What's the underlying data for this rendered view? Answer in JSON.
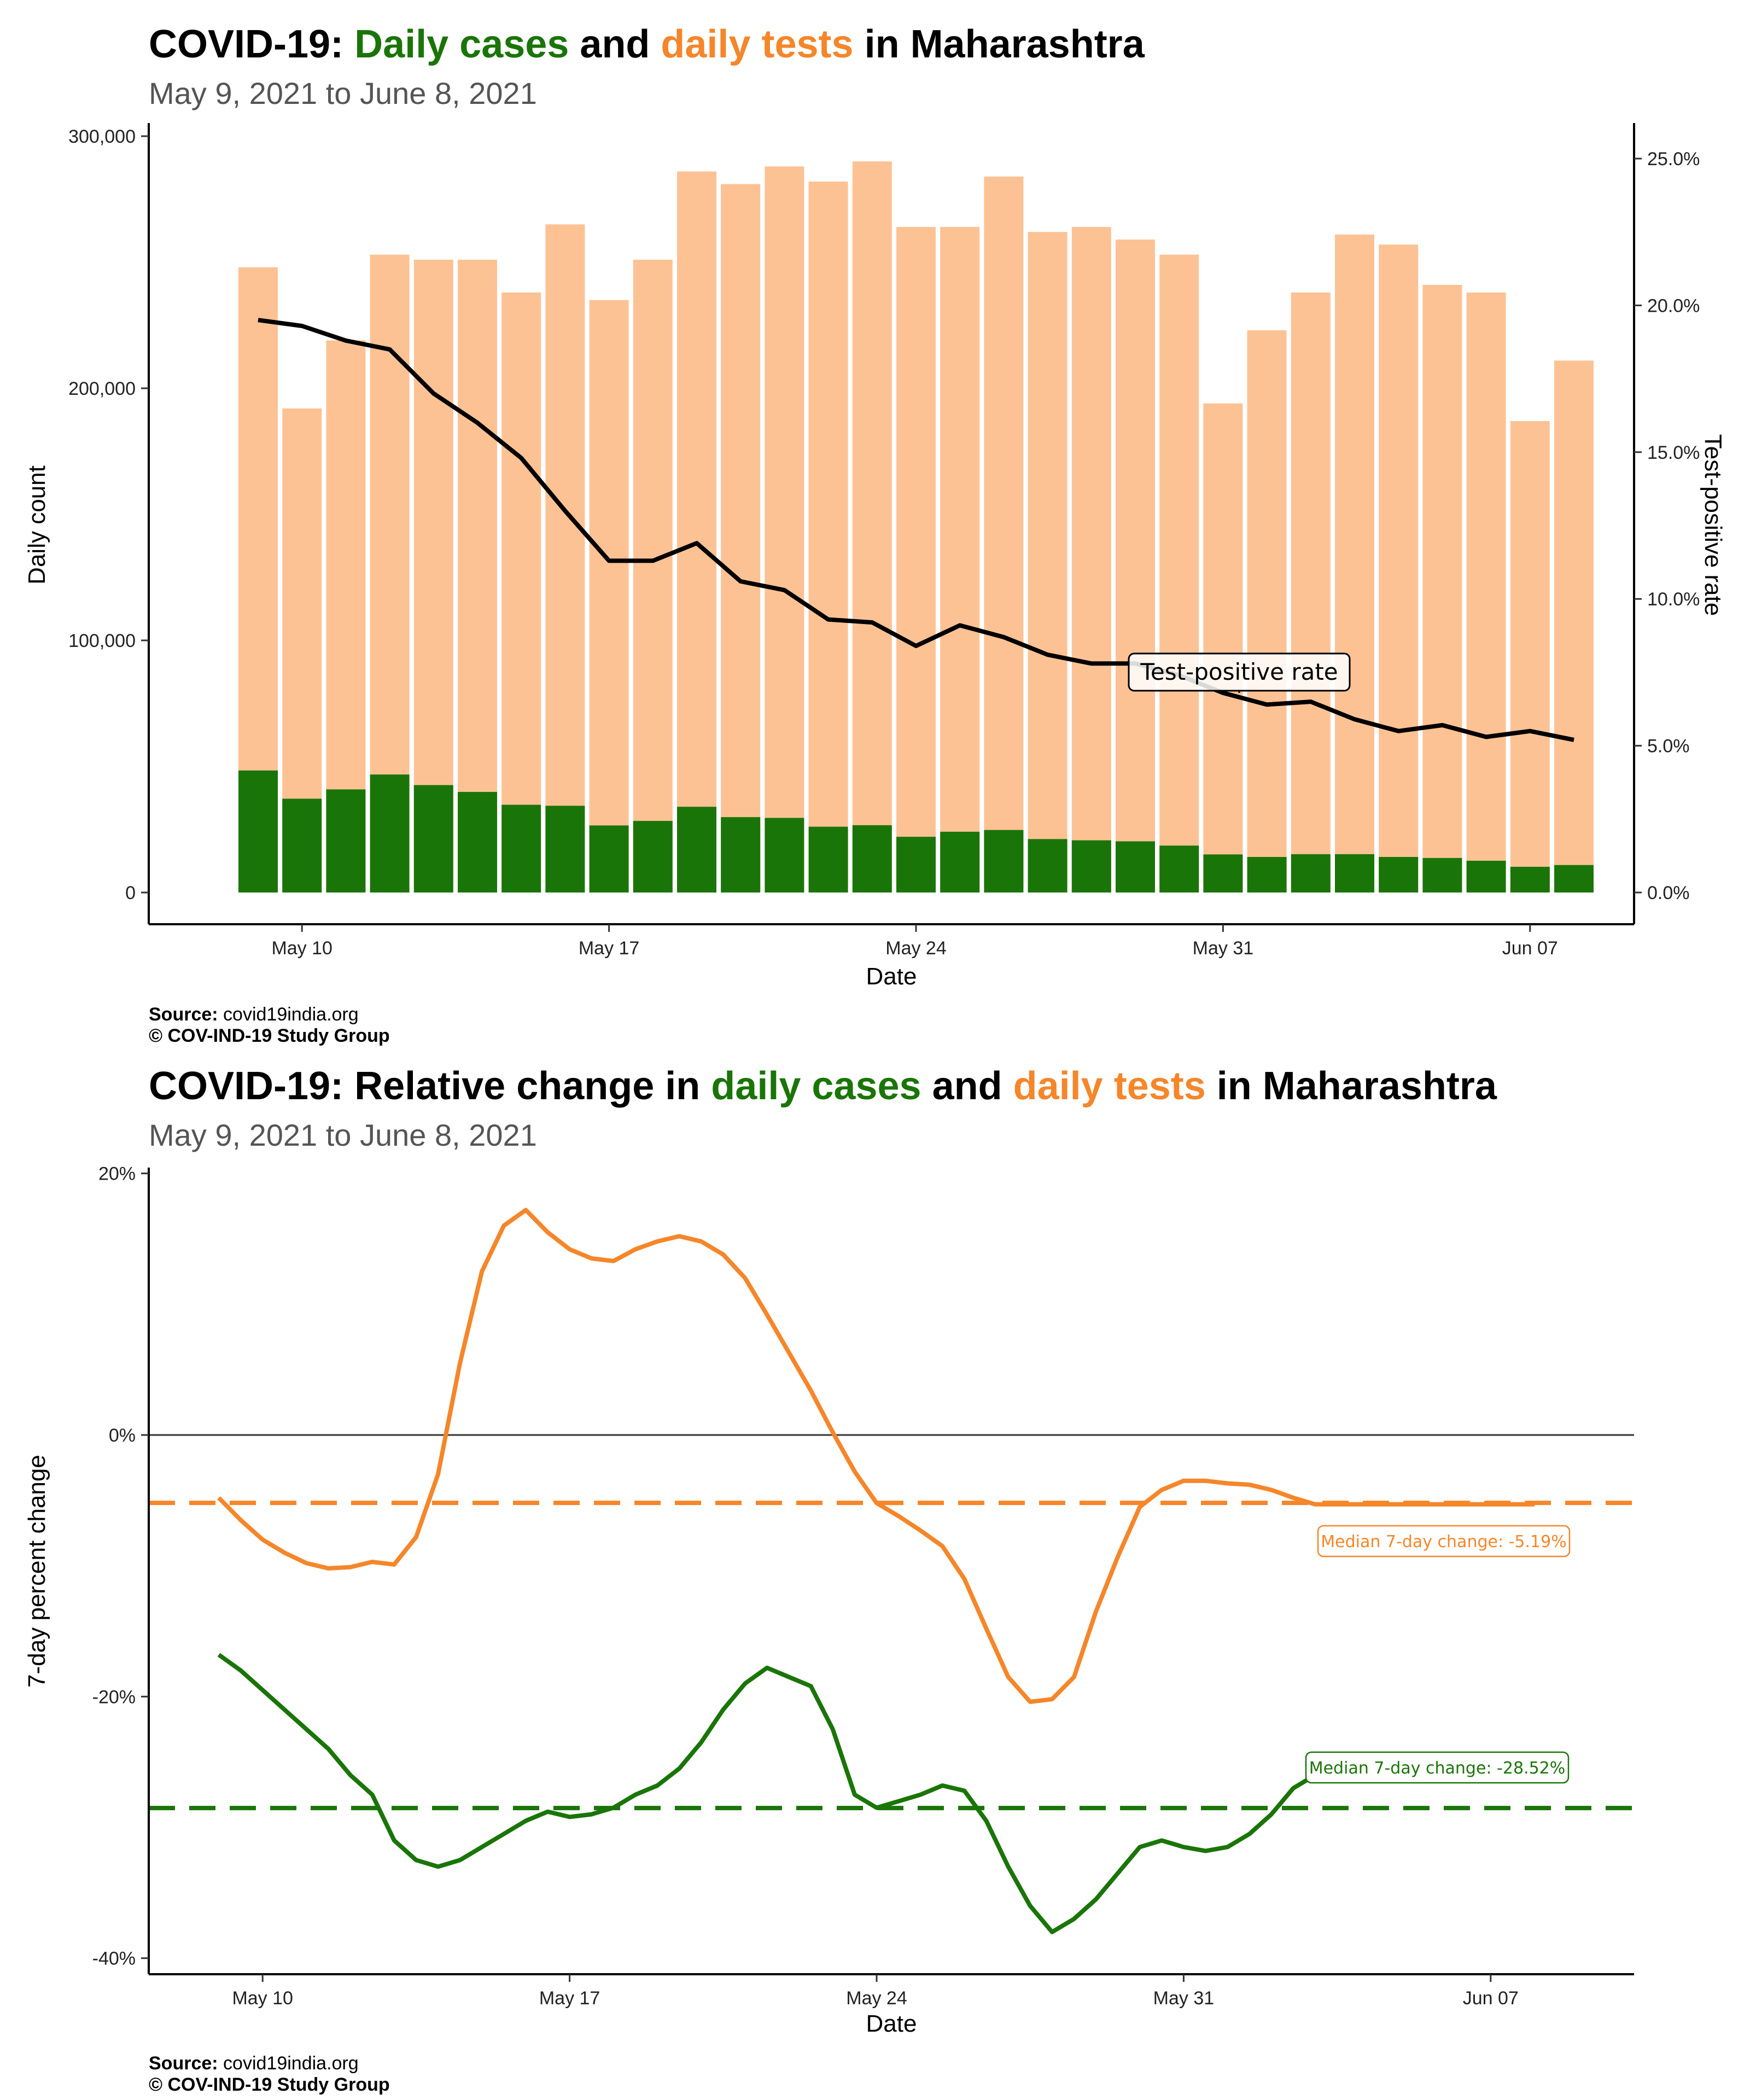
{
  "chart_data": [
    {
      "type": "bar",
      "title_parts": [
        {
          "text": "COVID-19: ",
          "color": "#000000"
        },
        {
          "text": "Daily cases",
          "color": "#1a7508"
        },
        {
          "text": " and ",
          "color": "#000000"
        },
        {
          "text": "daily tests",
          "color": "#f5862a"
        },
        {
          "text": " in Maharashtra",
          "color": "#000000"
        }
      ],
      "subtitle": "May  9, 2021 to June  8, 2021",
      "xlabel": "Date",
      "ylabel": "Daily count",
      "y2label": "Test-positive rate",
      "x_tick_labels": [
        "May 10",
        "May 17",
        "May 24",
        "May 31",
        "Jun 07"
      ],
      "y_tick_labels": [
        "0",
        "100,000",
        "200,000",
        "300,000"
      ],
      "y2_tick_labels": [
        "0.0%",
        "5.0%",
        "10.0%",
        "15.0%",
        "20.0%",
        "25.0%"
      ],
      "ylim": [
        0,
        300000
      ],
      "y2lim": [
        0,
        25
      ],
      "dates": [
        "May 9",
        "May 10",
        "May 11",
        "May 12",
        "May 13",
        "May 14",
        "May 15",
        "May 16",
        "May 17",
        "May 18",
        "May 19",
        "May 20",
        "May 21",
        "May 22",
        "May 23",
        "May 24",
        "May 25",
        "May 26",
        "May 27",
        "May 28",
        "May 29",
        "May 30",
        "May 31",
        "Jun 1",
        "Jun 2",
        "Jun 3",
        "Jun 4",
        "Jun 5",
        "Jun 6",
        "Jun 7",
        "Jun 8"
      ],
      "series": [
        {
          "name": "daily tests",
          "color": "#fdc294",
          "values": [
            248000,
            192000,
            219000,
            253000,
            251000,
            251000,
            238000,
            265000,
            235000,
            251000,
            286000,
            281000,
            288000,
            282000,
            290000,
            264000,
            264000,
            284000,
            262000,
            264000,
            259000,
            253000,
            194000,
            223000,
            238000,
            261000,
            257000,
            241000,
            238000,
            187000,
            211000
          ]
        },
        {
          "name": "daily cases",
          "color": "#1a7508",
          "values": [
            48400,
            37200,
            40900,
            46800,
            42600,
            39900,
            34800,
            34400,
            26600,
            28400,
            34000,
            29900,
            29600,
            26100,
            26700,
            22100,
            24100,
            24800,
            21200,
            20700,
            20300,
            18600,
            15100,
            14100,
            15200,
            15200,
            14100,
            13700,
            12600,
            10200,
            10900
          ]
        },
        {
          "name": "Test-positive rate",
          "color": "#000000",
          "values": [
            19.5,
            19.3,
            18.8,
            18.5,
            17.0,
            16.0,
            14.8,
            13.0,
            11.3,
            11.3,
            11.9,
            10.6,
            10.3,
            9.3,
            9.2,
            8.4,
            9.1,
            8.7,
            8.1,
            7.8,
            7.8,
            7.4,
            6.8,
            6.4,
            6.5,
            5.9,
            5.5,
            5.7,
            5.3,
            5.5,
            5.2
          ]
        }
      ],
      "annotation": "Test-positive rate",
      "source_label": "Source:",
      "source_text": " covid19india.org",
      "copyright": "© COV-IND-19 Study Group"
    },
    {
      "type": "line",
      "title_parts": [
        {
          "text": "COVID-19: Relative change in ",
          "color": "#000000"
        },
        {
          "text": "daily cases",
          "color": "#1a7508"
        },
        {
          "text": " and ",
          "color": "#000000"
        },
        {
          "text": "daily tests",
          "color": "#f5862a"
        },
        {
          "text": " in Maharashtra",
          "color": "#000000"
        }
      ],
      "subtitle": "May  9, 2021 to June  8, 2021",
      "xlabel": "Date",
      "ylabel": "7-day percent change",
      "x_tick_labels": [
        "May 10",
        "May 17",
        "May 24",
        "May 31",
        "Jun 07"
      ],
      "y_tick_labels": [
        "-40%",
        "-20%",
        "0%",
        "20%"
      ],
      "ylim": [
        -40,
        20
      ],
      "x_days": [
        0,
        0.5,
        1,
        1.5,
        2,
        2.5,
        3,
        3.5,
        4,
        4.5,
        5,
        5.5,
        6,
        6.5,
        7,
        7.5,
        8,
        8.5,
        9,
        9.5,
        10,
        10.5,
        11,
        11.5,
        12,
        12.5,
        13,
        13.5,
        14,
        14.5,
        15,
        15.5,
        16,
        16.5,
        17,
        17.5,
        18,
        18.5,
        19,
        19.5,
        20,
        20.5,
        21,
        21.5,
        22,
        22.5,
        23,
        23.5,
        24,
        24.5,
        25,
        25.5,
        26,
        26.5,
        27,
        27.5,
        28,
        28.5,
        29,
        29.5,
        30
      ],
      "series": [
        {
          "name": "daily tests",
          "color": "#f5862a",
          "values": [
            -4.8,
            -6.5,
            -8.0,
            -9.0,
            -9.8,
            -10.2,
            -10.1,
            -9.7,
            -9.9,
            -7.8,
            -3.0,
            5.5,
            12.5,
            16.0,
            17.2,
            15.5,
            14.2,
            13.5,
            13.3,
            14.2,
            14.8,
            15.2,
            14.8,
            13.8,
            12.0,
            9.2,
            6.3,
            3.4,
            0.2,
            -2.8,
            -5.2,
            -6.2,
            -7.3,
            -8.5,
            -11.0,
            -14.8,
            -18.5,
            -20.4,
            -20.2,
            -18.5,
            -13.5,
            -9.3,
            -5.5,
            -4.2,
            -3.5,
            -3.5,
            -3.7,
            -3.8,
            -4.2,
            -4.8,
            -5.3,
            -5.3,
            -5.3,
            -5.3,
            -5.3,
            -5.3,
            -5.3,
            -5.3,
            -5.3,
            -5.3,
            -5.3
          ]
        },
        {
          "name": "daily cases",
          "color": "#1a7508",
          "values": [
            -16.8,
            -18.0,
            -19.5,
            -21.0,
            -22.5,
            -24.0,
            -26.0,
            -27.5,
            -31.0,
            -32.5,
            -33.0,
            -32.5,
            -31.5,
            -30.5,
            -29.5,
            -28.8,
            -29.2,
            -29.0,
            -28.5,
            -27.5,
            -26.8,
            -25.5,
            -23.5,
            -21.0,
            -19.0,
            -17.8,
            -18.5,
            -19.2,
            -22.5,
            -27.5,
            -28.5,
            -28.0,
            -27.5,
            -26.8,
            -27.2,
            -29.5,
            -33.0,
            -36.0,
            -38.0,
            -37.0,
            -35.5,
            -33.5,
            -31.5,
            -31.0,
            -31.5,
            -31.8,
            -31.5,
            -30.5,
            -29.0,
            -27.0,
            -26.0,
            -26.0,
            -26.0,
            -26.0,
            -26.0,
            -26.0,
            -26.0,
            -26.0,
            -26.0,
            -26.0,
            -26.0
          ]
        }
      ],
      "medians": [
        {
          "name": "daily tests",
          "value": -5.19,
          "color": "#f5862a",
          "label": "Median 7-day change: -5.19%"
        },
        {
          "name": "daily cases",
          "value": -28.52,
          "color": "#1a7508",
          "label": "Median 7-day change: -28.52%"
        }
      ],
      "source_label": "Source:",
      "source_text": " covid19india.org",
      "copyright": "© COV-IND-19 Study Group"
    }
  ]
}
